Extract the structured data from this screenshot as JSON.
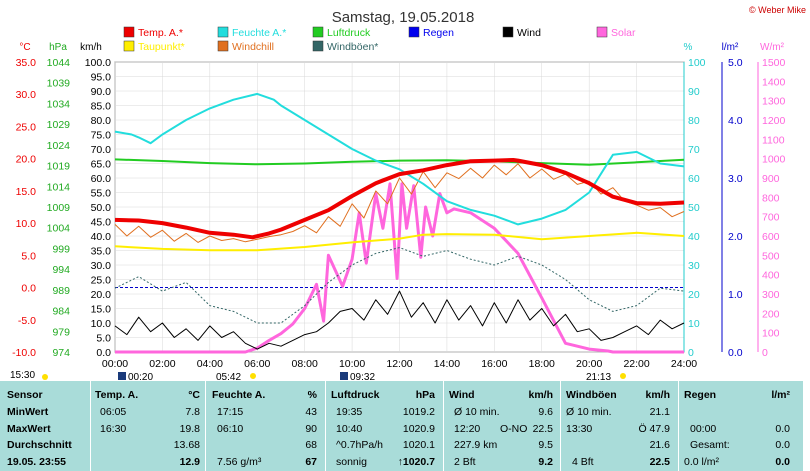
{
  "header": {
    "title": "Samstag, 19.05.2018",
    "copyright": "© Weber Mike"
  },
  "legend": [
    {
      "label": "Temp. A.*",
      "color": "#ee0000"
    },
    {
      "label": "Feuchte A.*",
      "color": "#22dddd"
    },
    {
      "label": "Luftdruck",
      "color": "#22cc22"
    },
    {
      "label": "Regen",
      "color": "#0000ee"
    },
    {
      "label": "Wind",
      "color": "#000000"
    },
    {
      "label": "Solar",
      "color": "#ff66dd"
    },
    {
      "label": "Taupunkt*",
      "color": "#ffee00"
    },
    {
      "label": "Windchill",
      "color": "#e07020"
    },
    {
      "label": "Windböen*",
      "color": "#336666"
    }
  ],
  "units": {
    "celsius": "°C",
    "hpa": "hPa",
    "kmh": "km/h",
    "percent": "%",
    "rain": "l/m²",
    "solar": "W/m²"
  },
  "sun": {
    "sunrise": "05:42",
    "sunset": "21:13",
    "moonrise": "00:20",
    "moonset": "09:32",
    "left_time": "15:30"
  },
  "chart_data": {
    "type": "line",
    "title": "Samstag, 19.05.2018",
    "x_ticks": [
      "00:00",
      "02:00",
      "04:00",
      "06:00",
      "08:00",
      "10:00",
      "12:00",
      "14:00",
      "16:00",
      "18:00",
      "20:00",
      "22:00",
      "24:00"
    ],
    "axes": {
      "temp_c": {
        "ticks": [
          "35.0",
          "30.0",
          "25.0",
          "20.0",
          "15.0",
          "10.0",
          "5.0",
          "0.0",
          "-5.0",
          "-10.0"
        ],
        "range": [
          -10,
          35
        ],
        "color": "#ee0000"
      },
      "pressure_hpa": {
        "ticks": [
          "1044",
          "1039",
          "1034",
          "1029",
          "1024",
          "1019",
          "1014",
          "1009",
          "1004",
          "999",
          "994",
          "989",
          "984",
          "979",
          "974"
        ],
        "range": [
          974,
          1044
        ],
        "color": "#22cc22"
      },
      "wind_kmh": {
        "ticks": [
          "100.0",
          "95.0",
          "90.0",
          "85.0",
          "80.0",
          "75.0",
          "70.0",
          "65.0",
          "60.0",
          "55.0",
          "50.0",
          "45.0",
          "40.0",
          "35.0",
          "30.0",
          "25.0",
          "20.0",
          "15.0",
          "10.0",
          "5.0",
          "0.0"
        ],
        "range": [
          0,
          100
        ],
        "color": "#000000"
      },
      "humidity_pct": {
        "ticks": [
          "100",
          "90",
          "80",
          "70",
          "60",
          "50",
          "40",
          "30",
          "20",
          "10",
          "0"
        ],
        "range": [
          0,
          100
        ],
        "color": "#22dddd"
      },
      "rain_lm2": {
        "ticks": [
          "5.0",
          "4.0",
          "3.0",
          "2.0",
          "1.0",
          "0.0"
        ],
        "range": [
          0,
          5
        ],
        "color": "#0000ee"
      },
      "solar_wm2": {
        "ticks": [
          "1500",
          "1400",
          "1300",
          "1200",
          "1100",
          "1000",
          "900",
          "800",
          "700",
          "600",
          "500",
          "400",
          "300",
          "200",
          "100",
          "0"
        ],
        "range": [
          0,
          1500
        ],
        "color": "#ff66dd"
      }
    },
    "series": [
      {
        "name": "Temp. A.*",
        "axis": "temp_c",
        "color": "#ee0000",
        "x": [
          0,
          1,
          2,
          3,
          4,
          5,
          5.8,
          6.5,
          7,
          8,
          9,
          10,
          11,
          12,
          13,
          14,
          15,
          16,
          16.8,
          17,
          18,
          19,
          20,
          21,
          22,
          23,
          24
        ],
        "y": [
          10.5,
          10.4,
          10.0,
          9.3,
          8.5,
          8.2,
          7.8,
          8.4,
          9.0,
          10.5,
          12.0,
          14.2,
          16.2,
          17.6,
          18.2,
          19.0,
          19.6,
          19.7,
          19.8,
          19.7,
          19.0,
          17.8,
          16.2,
          14.1,
          13.1,
          13.0,
          13.2
        ]
      },
      {
        "name": "Feuchte A.*",
        "axis": "humidity_pct",
        "color": "#22dddd",
        "x": [
          0,
          0.7,
          1,
          1.5,
          2,
          3,
          4,
          5,
          6,
          6.7,
          7,
          8,
          9,
          10,
          11,
          12,
          13,
          14,
          15,
          16,
          17,
          18,
          19,
          20,
          21,
          22,
          23,
          24
        ],
        "y": [
          76,
          75,
          74,
          72,
          75,
          80,
          84,
          87,
          89,
          87,
          85,
          80,
          75,
          70,
          66,
          63,
          58,
          52,
          49,
          47,
          44,
          46,
          49,
          55,
          68,
          69,
          65,
          64
        ]
      },
      {
        "name": "Luftdruck",
        "axis": "pressure_hpa",
        "color": "#22cc22",
        "x": [
          0,
          2,
          4,
          6,
          8,
          10,
          12,
          14,
          16,
          18,
          20,
          22,
          24
        ],
        "y": [
          1020.5,
          1020.1,
          1019.6,
          1019.3,
          1019.5,
          1019.9,
          1020.2,
          1020.3,
          1020.0,
          1019.6,
          1019.2,
          1019.8,
          1020.4
        ]
      },
      {
        "name": "Taupunkt*",
        "axis": "temp_c",
        "color": "#ffee00",
        "x": [
          0,
          2,
          4,
          6,
          8,
          10,
          12,
          13,
          14,
          16,
          18,
          20,
          22,
          24
        ],
        "y": [
          6.4,
          6.0,
          5.8,
          5.8,
          6.3,
          7.0,
          7.6,
          8.2,
          8.3,
          8.2,
          7.5,
          8.0,
          8.5,
          8.0
        ]
      },
      {
        "name": "Windchill",
        "axis": "temp_c",
        "color": "#e07020",
        "x": [
          0,
          0.5,
          1,
          1.5,
          2,
          2.5,
          3,
          3.5,
          4,
          4.5,
          5,
          5.5,
          6,
          6.5,
          7,
          7.5,
          8,
          8.5,
          9,
          9.5,
          10,
          10.5,
          11,
          11.5,
          12,
          12.5,
          13,
          13.5,
          14,
          14.5,
          15,
          15.5,
          16,
          16.5,
          17,
          17.5,
          18,
          18.5,
          19,
          19.5,
          20,
          20.5,
          21,
          21.5,
          22,
          22.5,
          23,
          23.5,
          24
        ],
        "y": [
          9.8,
          8.0,
          9.5,
          7.8,
          8.9,
          7.2,
          8.4,
          7.0,
          8.0,
          7.3,
          7.6,
          7.1,
          7.5,
          7.9,
          8.2,
          8.7,
          9.6,
          8.5,
          11.0,
          9.5,
          13.0,
          10.8,
          15.0,
          13.0,
          17.0,
          14.5,
          18.0,
          15.5,
          17.8,
          16.9,
          18.5,
          17.0,
          19.0,
          17.5,
          19.2,
          17.0,
          18.4,
          16.8,
          17.6,
          16.0,
          16.5,
          14.5,
          15.5,
          13.4,
          12.8,
          12.0,
          12.4,
          11.0,
          11.8
        ]
      },
      {
        "name": "Wind",
        "axis": "wind_kmh",
        "color": "#000000",
        "x": [
          0,
          0.5,
          1,
          1.5,
          2,
          2.5,
          3,
          3.5,
          4,
          4.5,
          5,
          5.5,
          6,
          6.5,
          7,
          7.5,
          8,
          8.5,
          9,
          9.5,
          10,
          10.5,
          11,
          11.5,
          12,
          12.5,
          13,
          13.5,
          14,
          14.5,
          15,
          15.5,
          16,
          16.5,
          17,
          17.5,
          18,
          18.5,
          19,
          19.5,
          20,
          20.5,
          21,
          21.5,
          22,
          22.5,
          23,
          23.5,
          24
        ],
        "y": [
          9,
          6,
          12,
          7,
          10,
          5,
          8,
          4,
          9,
          5,
          7,
          3,
          1,
          3,
          2,
          4,
          6,
          7,
          10,
          14,
          15,
          11,
          18,
          13,
          21,
          12,
          17,
          10,
          18,
          11,
          16,
          9,
          17,
          10,
          18,
          11,
          15,
          9,
          13,
          7,
          8,
          4,
          5,
          7,
          9,
          6,
          11,
          8,
          10
        ]
      },
      {
        "name": "Windböen*",
        "axis": "wind_kmh",
        "color": "#336666",
        "x": [
          0,
          1,
          2,
          3,
          4,
          5,
          6,
          7,
          8,
          9,
          10,
          11,
          12,
          13,
          14,
          15,
          16,
          17,
          18,
          19,
          20,
          21,
          22,
          23,
          24
        ],
        "y": [
          22,
          26,
          21,
          24,
          16,
          14,
          10,
          10,
          16,
          24,
          30,
          34,
          36,
          33,
          35,
          32,
          30,
          33,
          30,
          25,
          18,
          14,
          16,
          22,
          21
        ]
      },
      {
        "name": "Solar",
        "axis": "solar_wm2",
        "color": "#ff66dd",
        "x": [
          0,
          5.5,
          6,
          6.5,
          7,
          7.5,
          8,
          8.5,
          8.8,
          9,
          9.3,
          9.6,
          10,
          10.3,
          10.6,
          11,
          11.3,
          11.6,
          11.9,
          12.1,
          12.3,
          12.6,
          12.9,
          13.1,
          13.4,
          13.7,
          14,
          14.3,
          15,
          16,
          17,
          18,
          19,
          20,
          20.8,
          21,
          24
        ],
        "y": [
          0,
          0,
          20,
          60,
          95,
          145,
          225,
          350,
          160,
          500,
          420,
          340,
          480,
          720,
          460,
          820,
          640,
          870,
          380,
          870,
          640,
          860,
          490,
          750,
          600,
          820,
          720,
          740,
          720,
          640,
          510,
          280,
          45,
          15,
          5,
          0,
          0
        ]
      }
    ]
  },
  "table": {
    "headers": [
      "Sensor",
      "Temp. A.",
      "°C",
      "Feuchte A.",
      "%",
      "Luftdruck",
      "hPa",
      "Wind",
      "km/h",
      "Windböen",
      "km/h",
      "Regen",
      "l/m²"
    ],
    "rows": [
      {
        "label": "MinWert",
        "t_time": "06:05",
        "t_val": "7.8",
        "h_time": "17:15",
        "h_val": "43",
        "p_time": "19:35",
        "p_val": "1019.2",
        "w_label": "Ø 10 min.",
        "w_dir": "",
        "w_val": "9.6",
        "g_label": "Ø 10 min.",
        "g_val": "21.1",
        "r_label": "",
        "r_val": ""
      },
      {
        "label": "MaxWert",
        "t_time": "16:30",
        "t_val": "19.8",
        "h_time": "06:10",
        "h_val": "90",
        "p_time": "10:40",
        "p_val": "1020.9",
        "w_label": "12:20",
        "w_dir": "O-NO",
        "w_val": "22.5",
        "g_label": "13:30",
        "g_val": "Ö 47.9",
        "r_label": "00:00",
        "r_val": "0.0"
      },
      {
        "label": "Durchschnitt",
        "t_time": "",
        "t_val": "13.68",
        "h_time": "",
        "h_val": "68",
        "p_time": "^0.7hPa/h",
        "p_val": "1020.1",
        "w_label": "227.9 km",
        "w_dir": "",
        "w_val": "9.5",
        "g_label": "",
        "g_val": "21.6",
        "r_label": "Gesamt:",
        "r_val": "0.0"
      },
      {
        "label": "19.05. 23:55",
        "t_time": "",
        "t_val": "12.9",
        "h_time": "7.56 g/m³",
        "h_val": "67",
        "p_time": "sonnig",
        "p_val": "↑1020.7",
        "w_label": "2 Bft",
        "w_dir": "",
        "w_val": "9.2",
        "g_label": "4 Bft",
        "g_val": "22.5",
        "r_label": "0.0 l/m²",
        "r_val": "0.0"
      }
    ]
  }
}
